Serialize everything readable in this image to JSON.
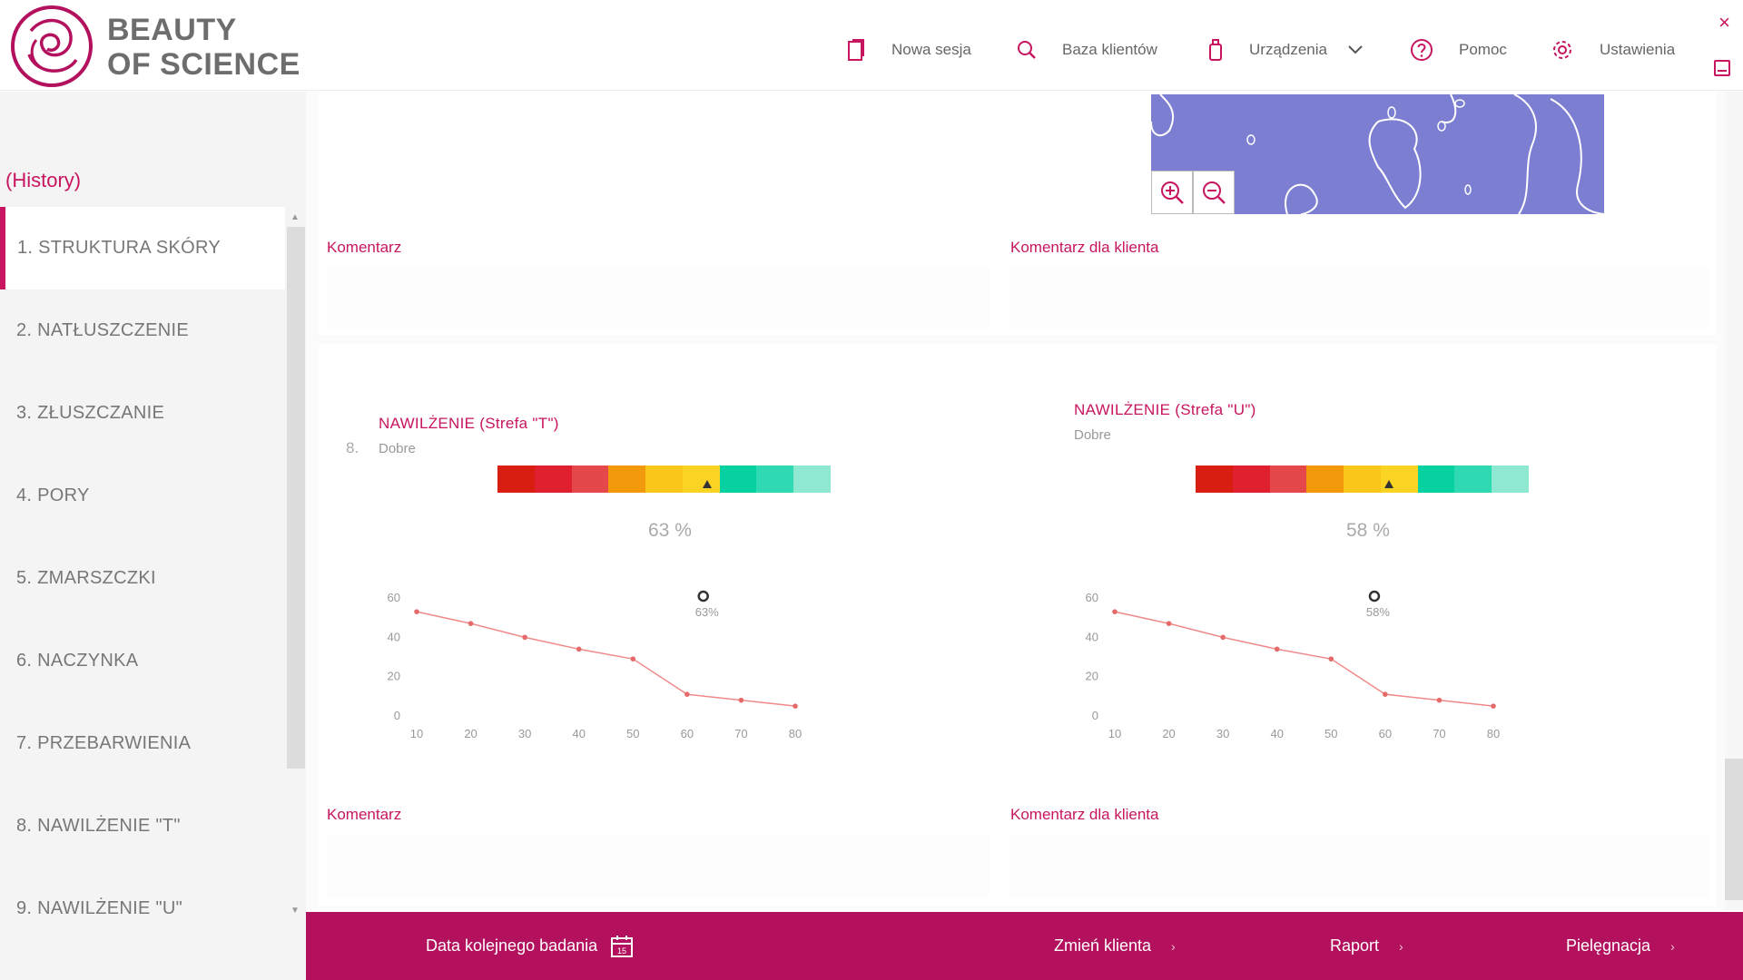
{
  "header": {
    "brand_line1": "BEAUTY",
    "brand_line2": "OF SCIENCE",
    "nav": {
      "new_session": "Nowa sesja",
      "client_base": "Baza klientów",
      "devices": "Urządzenia",
      "help": "Pomoc",
      "settings": "Ustawienia"
    },
    "close_glyph": "×"
  },
  "sidebar": {
    "history_label": "(History)",
    "items": [
      {
        "label": "1. STRUKTURA SKÓRY",
        "active": true
      },
      {
        "label": "2. NATŁUSZCZENIE",
        "active": false
      },
      {
        "label": "3. ZŁUSZCZANIE",
        "active": false
      },
      {
        "label": "4. PORY",
        "active": false
      },
      {
        "label": "5. ZMARSZCZKI",
        "active": false
      },
      {
        "label": "6. NACZYNKA",
        "active": false
      },
      {
        "label": "7. PRZEBARWIENIA",
        "active": false
      },
      {
        "label": "8. NAWILŻENIE \"T\"",
        "active": false
      },
      {
        "label": "9. NAWILŻENIE \"U\"",
        "active": false
      }
    ]
  },
  "top_card": {
    "comment_label": "Komentarz",
    "client_comment_label": "Komentarz dla klienta"
  },
  "section_8": {
    "number": "8.",
    "left": {
      "title": "NAWILŻENIE (Strefa \"T\")",
      "rating": "Dobre",
      "percent_text": "63 %",
      "marker_fraction": 0.63,
      "callout": "63%"
    },
    "right": {
      "title": "NAWILŻENIE (Strefa \"U\")",
      "rating": "Dobre",
      "percent_text": "58 %",
      "marker_fraction": 0.58,
      "callout": "58%"
    },
    "comment_label": "Komentarz",
    "client_comment_label": "Komentarz dla klienta"
  },
  "scale_colors": [
    "#d81e10",
    "#e0202e",
    "#e5484a",
    "#f39a0c",
    "#fac61a",
    "#fbd323",
    "#07d1a0",
    "#2fdab3",
    "#8ee8d2"
  ],
  "chart_data": [
    {
      "type": "line",
      "x": [
        10,
        20,
        30,
        40,
        50,
        60,
        70,
        80
      ],
      "values": [
        53,
        47,
        40,
        34,
        29,
        11,
        8,
        5
      ],
      "ylim": [
        0,
        60
      ],
      "xlim": [
        10,
        80
      ],
      "yticks": [
        "0",
        "20",
        "40",
        "60"
      ],
      "xticks": [
        "10",
        "20",
        "30",
        "40",
        "50",
        "60",
        "70",
        "80"
      ],
      "current_x": 63,
      "current_label": "63%",
      "grid": false
    },
    {
      "type": "line",
      "x": [
        10,
        20,
        30,
        40,
        50,
        60,
        70,
        80
      ],
      "values": [
        53,
        47,
        40,
        34,
        29,
        11,
        8,
        5
      ],
      "ylim": [
        0,
        60
      ],
      "xlim": [
        10,
        80
      ],
      "yticks": [
        "0",
        "20",
        "40",
        "60"
      ],
      "xticks": [
        "10",
        "20",
        "30",
        "40",
        "50",
        "60",
        "70",
        "80"
      ],
      "current_x": 58,
      "current_label": "58%",
      "grid": false
    }
  ],
  "footer": {
    "next_exam": "Data kolejnego badania",
    "calendar_day": "15",
    "change_client": "Zmień klienta",
    "report": "Raport",
    "care": "Pielęgnacja",
    "chevron": "›"
  },
  "colors": {
    "accent": "#c7155f",
    "footer_bg": "#b3115d",
    "map_bg": "#7c7fd1",
    "line": "#f08a8a"
  }
}
